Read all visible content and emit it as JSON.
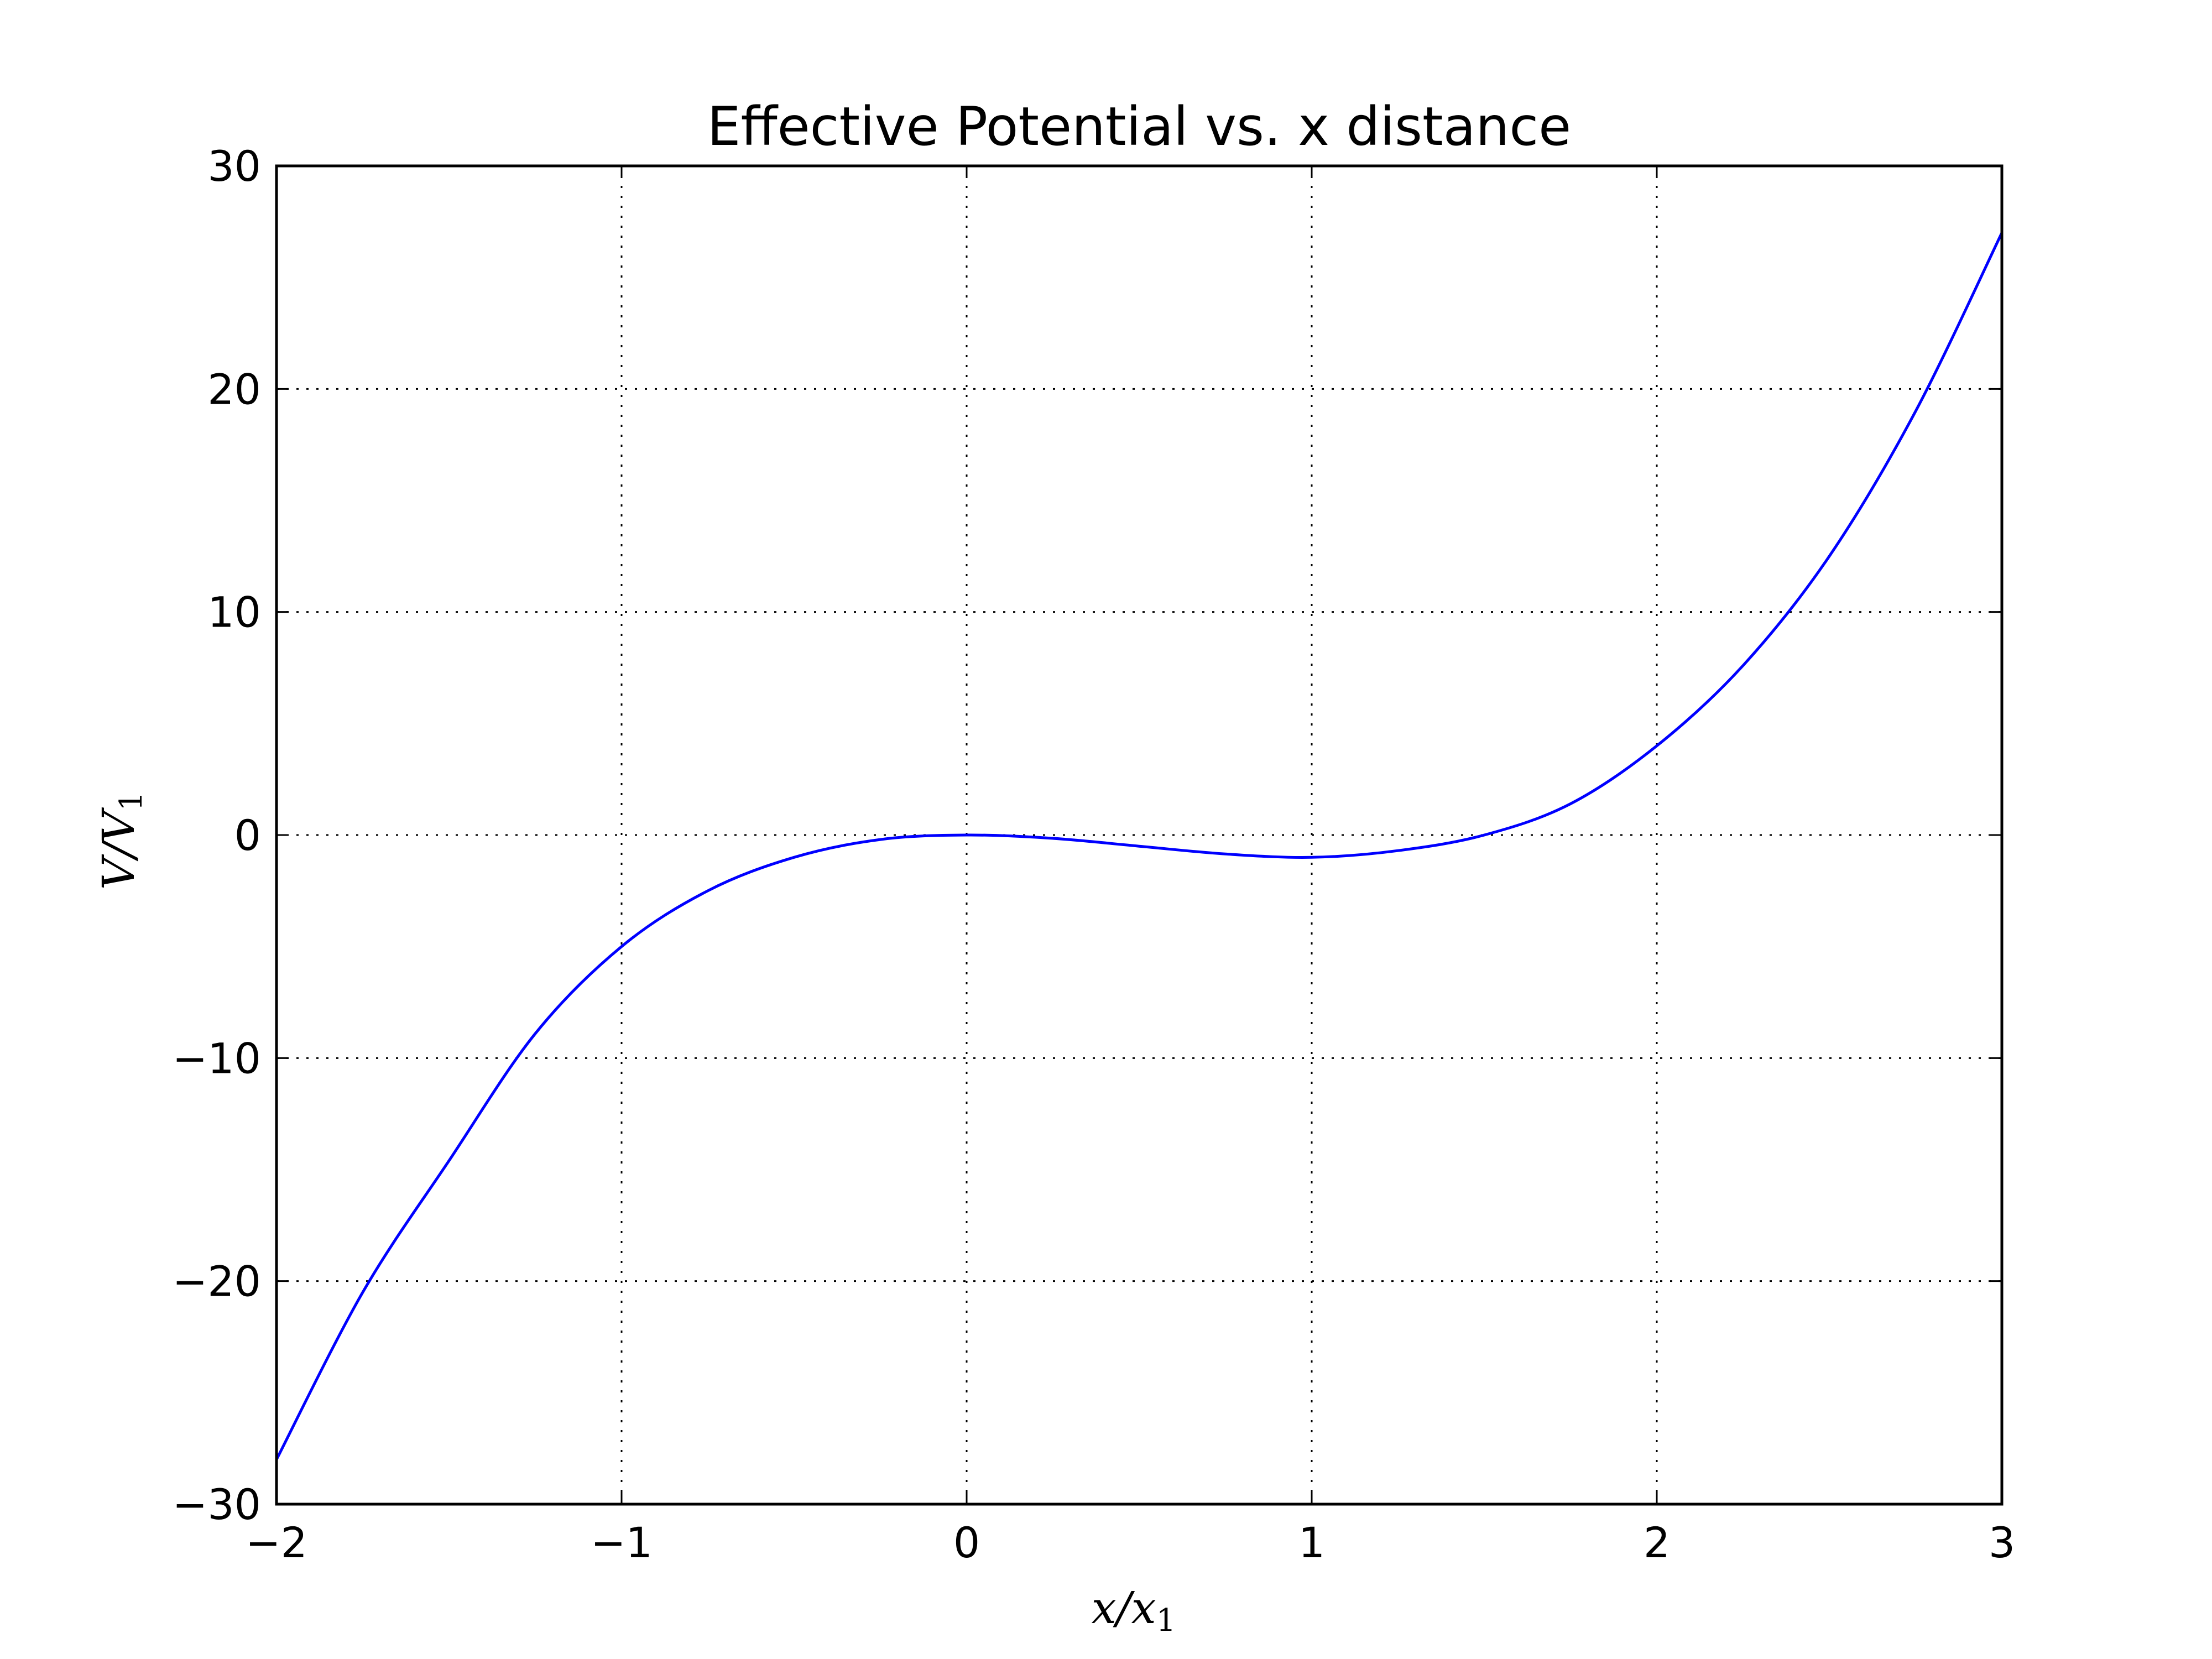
{
  "chart_data": {
    "type": "line",
    "title": "Effective Potential vs. x distance",
    "xlabel": "x/x",
    "xlabel_sub": "1",
    "ylabel": "V/V",
    "ylabel_sub": "1",
    "xlim": [
      -2,
      3
    ],
    "ylim": [
      -30,
      30
    ],
    "grid": true,
    "xticks": [
      -2,
      -1,
      0,
      1,
      2,
      3
    ],
    "xtick_labels": [
      "−2",
      "−1",
      "0",
      "1",
      "2",
      "3"
    ],
    "yticks": [
      -30,
      -20,
      -10,
      0,
      10,
      20,
      30
    ],
    "ytick_labels": [
      "−30",
      "−20",
      "−10",
      "0",
      "10",
      "20",
      "30"
    ],
    "series": [
      {
        "color": "#0000ff",
        "x": [
          -2.0,
          -1.75,
          -1.5,
          -1.25,
          -1.0,
          -0.75,
          -0.5,
          -0.25,
          0.0,
          0.25,
          0.5,
          0.75,
          1.0,
          1.25,
          1.5,
          1.75,
          2.0,
          2.25,
          2.5,
          2.75,
          3.0
        ],
        "y": [
          -28.0,
          -20.5,
          -14.6,
          -8.9,
          -5.0,
          -2.5,
          -1.0,
          -0.2,
          0.0,
          -0.15,
          -0.5,
          -0.85,
          -1.0,
          -0.7,
          0.0,
          1.4,
          4.0,
          7.6,
          12.5,
          19.0,
          27.0
        ]
      }
    ]
  }
}
